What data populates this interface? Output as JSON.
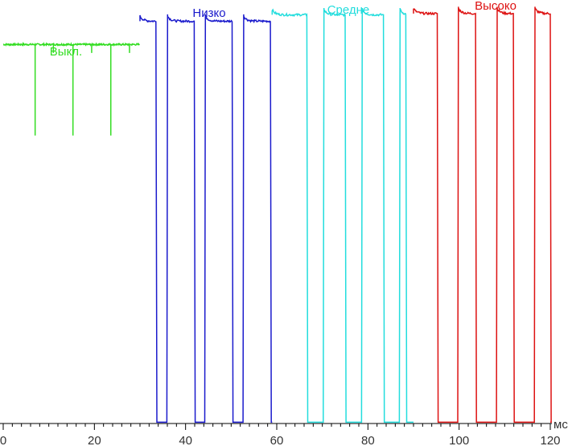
{
  "chart_data": {
    "type": "line",
    "xlabel": "мс",
    "xlim": [
      0,
      120
    ],
    "ylim": [
      0,
      100
    ],
    "x_ticks": [
      0,
      20,
      40,
      60,
      80,
      100,
      120
    ],
    "x_tick_labels": [
      "0",
      "20",
      "40",
      "60",
      "80",
      "100",
      "120"
    ],
    "series": [
      {
        "name": "Выкл.",
        "color": "#33dd22",
        "pulse_width": 0,
        "x_start": 0,
        "x_end": 30,
        "high": 89.5,
        "dips": [
          {
            "x": 7.0,
            "y": 68
          },
          {
            "x": 15.3,
            "y": 68
          },
          {
            "x": 23.6,
            "y": 68
          }
        ],
        "spikes": [
          11,
          19.4,
          27.7
        ]
      },
      {
        "name": "Низко",
        "color": "#1a1acc",
        "pulse_width": 5.4,
        "x_start": 30,
        "x_end": 59,
        "high": 96,
        "rises": [
          35.9,
          44.2,
          52.6
        ],
        "falls": [
          33.5,
          41.9,
          50.2,
          58.6
        ]
      },
      {
        "name": "Средне",
        "color": "#22dddd",
        "pulse_width": 4.8,
        "x_start": 59,
        "x_end": 90,
        "high": 97.5,
        "rises": [
          61.8,
          70.2,
          78.6,
          86.9
        ],
        "falls": [
          66.6,
          75.0,
          83.4,
          88.3
        ]
      },
      {
        "name": "Высоко",
        "color": "#dd1111",
        "pulse_width": 4.0,
        "x_start": 90,
        "x_end": 120,
        "high": 97.8,
        "rises": [
          91.4,
          99.7,
          108.2,
          116.5
        ],
        "falls": [
          95.2,
          103.6,
          111.9,
          120.0
        ]
      }
    ]
  }
}
